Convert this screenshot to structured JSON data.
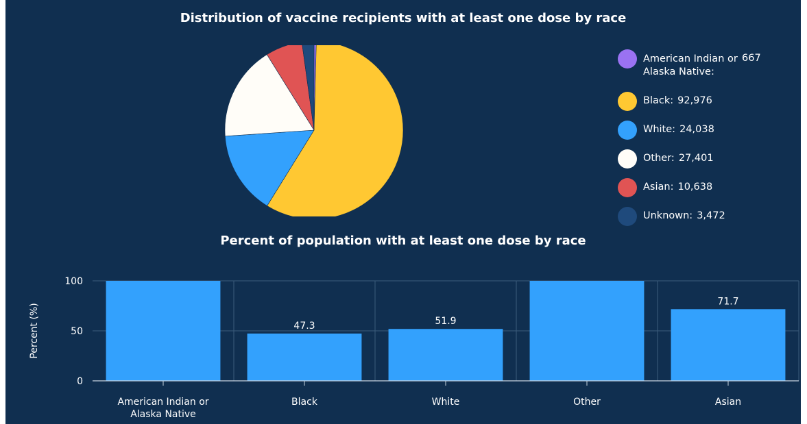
{
  "chart_data": [
    {
      "type": "pie",
      "title": "Distribution of vaccine recipients with at least one dose by race",
      "slices": [
        {
          "name": "American Indian or Alaska Native",
          "legend_label": "American Indian or Alaska Native:",
          "value": 667,
          "value_text": "667",
          "color": "#9a72f2"
        },
        {
          "name": "Black",
          "legend_label": "Black:",
          "value": 92976,
          "value_text": "92,976",
          "color": "#ffc832"
        },
        {
          "name": "White",
          "legend_label": "White:",
          "value": 24038,
          "value_text": "24,038",
          "color": "#33a1fd"
        },
        {
          "name": "Other",
          "legend_label": "Other:",
          "value": 27401,
          "value_text": "27,401",
          "color": "#fffdf8"
        },
        {
          "name": "Asian",
          "legend_label": "Asian:",
          "value": 10638,
          "value_text": "10,638",
          "color": "#e05454"
        },
        {
          "name": "Unknown",
          "legend_label": "Unknown:",
          "value": 3472,
          "value_text": "3,472",
          "color": "#1f4a7c"
        }
      ],
      "legend": {
        "position": "right"
      }
    },
    {
      "type": "bar",
      "title": "Percent of population with at least one dose by race",
      "categories": [
        "American Indian or Alaska Native",
        "Black",
        "White",
        "Other",
        "Asian"
      ],
      "values": [
        100,
        47.3,
        51.9,
        100,
        71.7
      ],
      "data_labels": [
        "",
        "47.3",
        "51.9",
        "",
        "71.7"
      ],
      "ylabel": "Percent (%)",
      "xlabel": "",
      "ylim": [
        0,
        100
      ],
      "yticks": [
        0,
        50,
        100
      ],
      "grid": true,
      "bar_color": "#33a1fd"
    }
  ],
  "colors": {
    "background": "#102f50",
    "gridline": "#3c5c7c",
    "text": "#ffffff"
  }
}
